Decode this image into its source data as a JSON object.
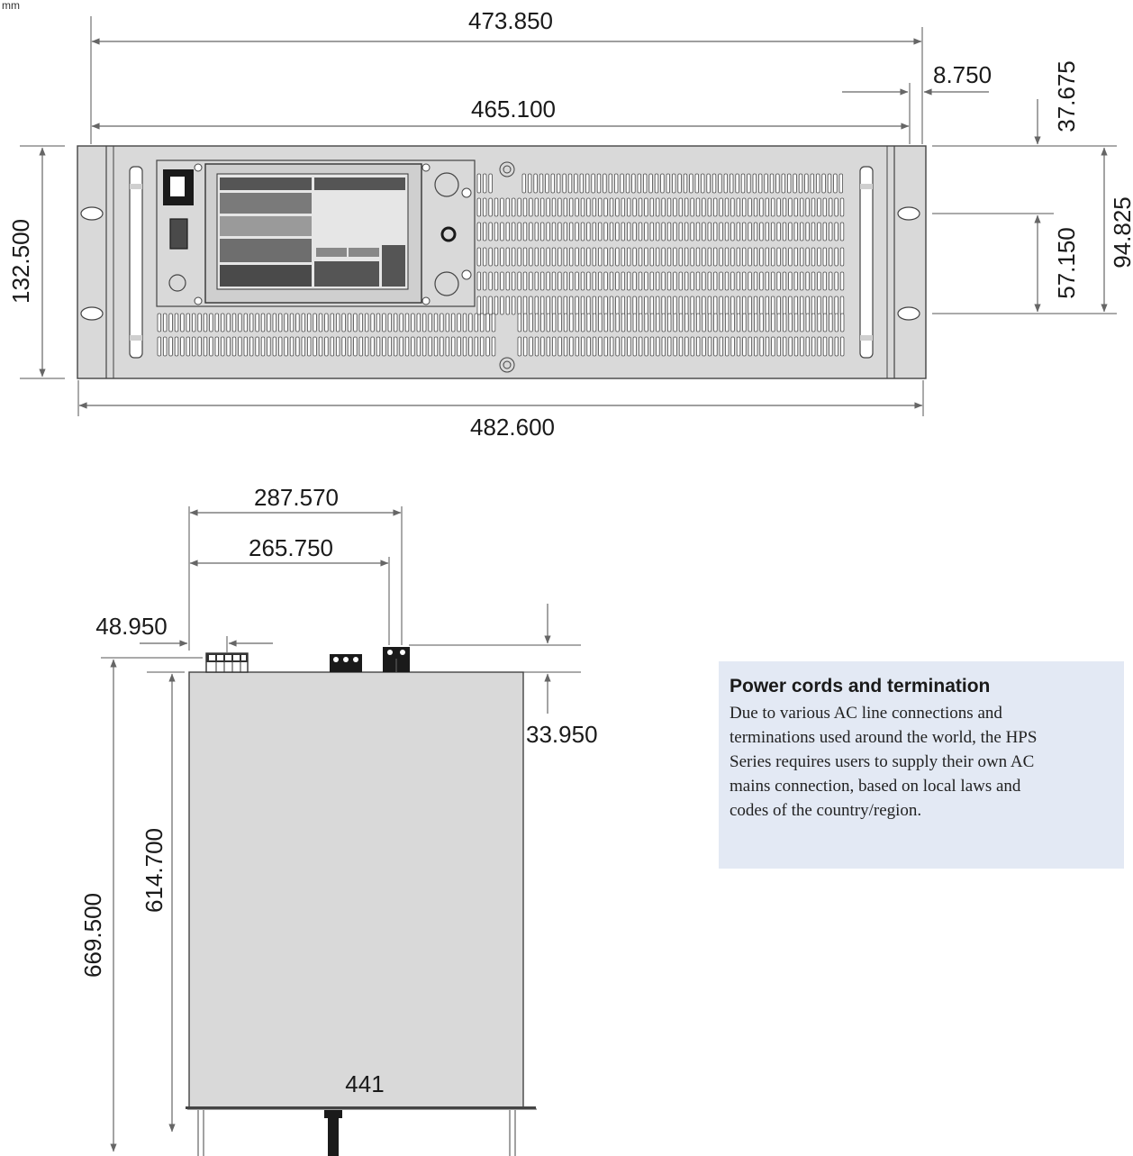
{
  "unit": "mm",
  "front_view": {
    "dims": {
      "overall_width": "473.850",
      "inner_width": "465.100",
      "ear_offset": "8.750",
      "top_offset": "37.675",
      "panel_height": "132.500",
      "mount_span": "94.825",
      "hole_spacing": "57.150",
      "rack_width": "482.600"
    }
  },
  "top_view": {
    "dims": {
      "width_a": "287.570",
      "width_b": "265.750",
      "left_offset": "48.950",
      "connector_height": "33.950",
      "overall_depth": "669.500",
      "body_depth": "614.700",
      "body_width": "441"
    }
  },
  "note": {
    "title": "Power cords and termination",
    "text": "Due to various AC line connections and terminations used around the world, the HPS Series requires users to supply their own AC mains connection, based on local laws and codes of the country/region."
  },
  "colors": {
    "panel": "#d9d9d9",
    "line": "#4d4d4d",
    "dim_line": "#666666",
    "note_bg": "#e3e9f4"
  }
}
